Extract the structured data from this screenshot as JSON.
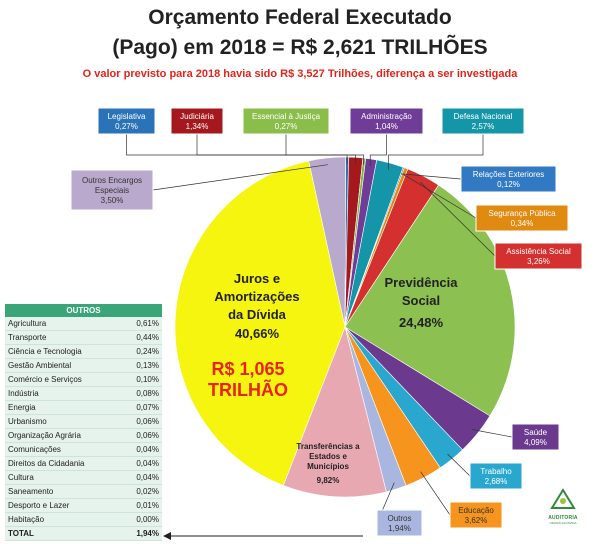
{
  "header": {
    "title_line1": "Orçamento Federal Executado",
    "title_line2": "(Pago) em 2018 = R$ 2,621 TRILHÕES",
    "subtitle": "O valor previsto para 2018 havia sido R$ 3,527 Trilhões, diferença a ser investigada"
  },
  "chart_data": {
    "type": "pie",
    "unit": "%",
    "slices": [
      {
        "name": "Juros e Amortizações da Dívida",
        "value": 40.66,
        "value_label": "40,66%",
        "color": "#f5f50f"
      },
      {
        "name": "Previdência Social",
        "value": 24.48,
        "value_label": "24,48%",
        "color": "#8cc050"
      },
      {
        "name": "Transferências a Estados e Municípios",
        "value": 9.82,
        "value_label": "9,82%",
        "color": "#e8a8b2"
      },
      {
        "name": "Saúde",
        "value": 4.09,
        "value_label": "4,09%",
        "color": "#6b3a8e"
      },
      {
        "name": "Educação",
        "value": 3.62,
        "value_label": "3,62%",
        "color": "#f7941d"
      },
      {
        "name": "Outros Encargos Especiais",
        "value": 3.5,
        "value_label": "3,50%",
        "color": "#b9a9cc"
      },
      {
        "name": "Assistência Social",
        "value": 3.26,
        "value_label": "3,26%",
        "color": "#d4302f"
      },
      {
        "name": "Trabalho",
        "value": 2.68,
        "value_label": "2,68%",
        "color": "#2aa7cf"
      },
      {
        "name": "Defesa Nacional",
        "value": 2.57,
        "value_label": "2,57%",
        "color": "#1596a8"
      },
      {
        "name": "Outros",
        "value": 1.94,
        "value_label": "1,94%",
        "color": "#a9b7e0"
      },
      {
        "name": "Judiciária",
        "value": 1.34,
        "value_label": "1,34%",
        "color": "#a5191e"
      },
      {
        "name": "Administração",
        "value": 1.04,
        "value_label": "1,04%",
        "color": "#6f3d97"
      },
      {
        "name": "Segurança Pública",
        "value": 0.34,
        "value_label": "0,34%",
        "color": "#e08a12"
      },
      {
        "name": "Legislativa",
        "value": 0.27,
        "value_label": "0,27%",
        "color": "#2a73b8"
      },
      {
        "name": "Essencial à Justiça",
        "value": 0.27,
        "value_label": "0,27%",
        "color": "#7ab648"
      },
      {
        "name": "Relações Exteriores",
        "value": 0.12,
        "value_label": "0,12%",
        "color": "#3279c4"
      }
    ],
    "center_values": [
      {
        "line1": "Juros e",
        "line2": "Amortizações",
        "line3": "da Dívida",
        "value": "40,66%"
      },
      {
        "line1": "Previdência",
        "line2": "Social",
        "value": "24,48%"
      },
      {
        "line1": "Transferências a",
        "line2": "Estados e",
        "line3": "Municípios",
        "value": "9,82%"
      }
    ],
    "highlight": {
      "line1": "R$ 1,065",
      "line2": "TRILHÃO",
      "color": "#e8231a"
    }
  },
  "others_table": {
    "header": "OUTROS",
    "rows": [
      {
        "name": "Agricultura",
        "value": "0,61%"
      },
      {
        "name": "Transporte",
        "value": "0,44%"
      },
      {
        "name": "Ciência e Tecnologia",
        "value": "0,24%"
      },
      {
        "name": "Gestão Ambiental",
        "value": "0,13%"
      },
      {
        "name": "Comércio e Serviços",
        "value": "0,10%"
      },
      {
        "name": "Indústria",
        "value": "0,08%"
      },
      {
        "name": "Energia",
        "value": "0,07%"
      },
      {
        "name": "Urbanismo",
        "value": "0,06%"
      },
      {
        "name": "Organização Agrária",
        "value": "0,06%"
      },
      {
        "name": "Comunicações",
        "value": "0,04%"
      },
      {
        "name": "Direitos da Cidadania",
        "value": "0,04%"
      },
      {
        "name": "Cultura",
        "value": "0,04%"
      },
      {
        "name": "Saneamento",
        "value": "0,02%"
      },
      {
        "name": "Desporto e Lazer",
        "value": "0,01%"
      },
      {
        "name": "Habitação",
        "value": "0,00%"
      }
    ],
    "total_label": "TOTAL",
    "total_value": "1,94%"
  },
  "logo": {
    "text": "AUDITORIA",
    "sub": "CIDADÃ DA DÍVIDA"
  }
}
